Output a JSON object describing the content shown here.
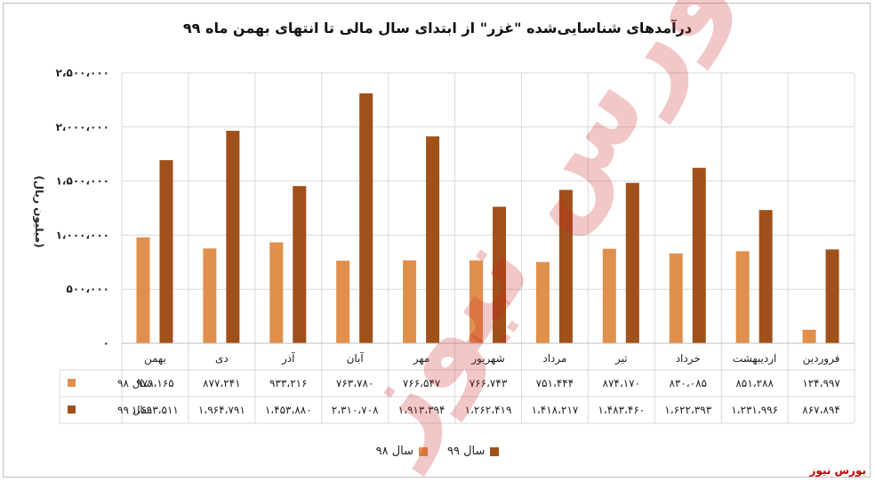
{
  "chart_data": {
    "type": "bar",
    "title": "درآمدهای شناسایی‌شده \"غزر\" از ابتدای سال مالی تا انتهای بهمن ماه ۹۹",
    "ylabel": "(میلیون ریال)",
    "xlabel": "",
    "ylim": [
      0,
      2500000
    ],
    "yticks": [
      0,
      500000,
      1000000,
      1500000,
      2000000,
      2500000
    ],
    "ytick_labels": [
      "۰",
      "۵۰۰،۰۰۰",
      "۱،۰۰۰،۰۰۰",
      "۱،۵۰۰،۰۰۰",
      "۲،۰۰۰،۰۰۰",
      "۲،۵۰۰،۰۰۰"
    ],
    "grid": true,
    "legend_position": "bottom",
    "categories": [
      "فروردین",
      "اردیبهشت",
      "خرداد",
      "تیر",
      "مرداد",
      "شهریور",
      "مهر",
      "آبان",
      "آذر",
      "دی",
      "بهمن"
    ],
    "series": [
      {
        "name": "سال ۹۸",
        "color": "#e0904c",
        "values": [
          124997,
          851288,
          830085,
          874170,
          751444,
          766743,
          766547,
          763780,
          933216,
          877241,
          979165
        ],
        "labels": [
          "۱۲۴،۹۹۷",
          "۸۵۱،۲۸۸",
          "۸۳۰،۰۸۵",
          "۸۷۴،۱۷۰",
          "۷۵۱،۴۴۴",
          "۷۶۶،۷۴۳",
          "۷۶۶،۵۴۷",
          "۷۶۳،۷۸۰",
          "۹۳۳،۲۱۶",
          "۸۷۷،۲۴۱",
          "۹۷۹،۱۶۵"
        ]
      },
      {
        "name": "سال ۹۹",
        "color": "#a0501a",
        "values": [
          867894,
          1231996,
          1622393,
          1483460,
          1418217,
          1262419,
          1913394,
          2310708,
          1453880,
          1964791,
          1693511
        ],
        "labels": [
          "۸۶۷،۸۹۴",
          "۱،۲۳۱،۹۹۶",
          "۱،۶۲۲،۳۹۳",
          "۱،۴۸۳،۴۶۰",
          "۱،۴۱۸،۲۱۷",
          "۱،۲۶۲،۴۱۹",
          "۱،۹۱۳،۳۹۴",
          "۲،۳۱۰،۷۰۸",
          "۱،۴۵۳،۸۸۰",
          "۱،۹۶۴،۷۹۱",
          "۱،۶۹۳،۵۱۱"
        ]
      }
    ]
  },
  "watermark": "بورس نیوز",
  "brand": "بورس نیوز"
}
